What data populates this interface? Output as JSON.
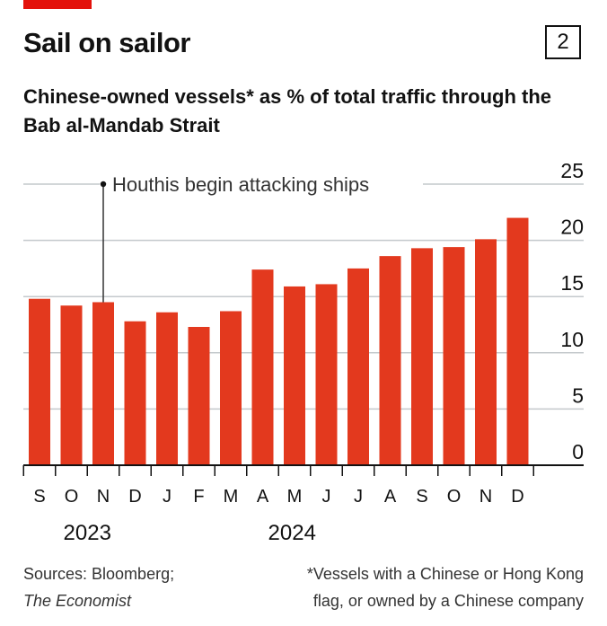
{
  "header": {
    "title": "Sail on sailor",
    "chart_number": "2",
    "subtitle": "Chinese-owned vessels* as % of total traffic through the Bab al-Mandab Strait"
  },
  "colors": {
    "accent": "#e3120b",
    "bar": "#e3391e",
    "grid": "#c4c9cc"
  },
  "chart_data": {
    "type": "bar",
    "title": "Chinese-owned vessels* as % of total traffic through the Bab al-Mandab Strait",
    "categories": [
      "S",
      "O",
      "N",
      "D",
      "J",
      "F",
      "M",
      "A",
      "M",
      "J",
      "J",
      "A",
      "S",
      "O",
      "N",
      "D"
    ],
    "values": [
      14.8,
      14.2,
      14.5,
      12.8,
      13.6,
      12.3,
      13.7,
      17.4,
      15.9,
      16.1,
      17.5,
      18.6,
      19.3,
      19.4,
      20.1,
      22.0
    ],
    "years": [
      {
        "label": "2023",
        "start_index": 0,
        "end_index": 3
      },
      {
        "label": "2024",
        "start_index": 4,
        "end_index": 15
      }
    ],
    "ylim": [
      0,
      25
    ],
    "y_ticks": [
      0,
      5,
      10,
      15,
      20,
      25
    ],
    "y_axis_side": "right",
    "grid": true,
    "annotation": {
      "text": "Houthis begin attacking ships",
      "category_index": 2
    }
  },
  "footer": {
    "sources_line1": "Sources: Bloomberg;",
    "sources_line2": "The Economist",
    "note_line1": "*Vessels with a Chinese or Hong Kong",
    "note_line2": "flag, or owned by a Chinese company"
  }
}
